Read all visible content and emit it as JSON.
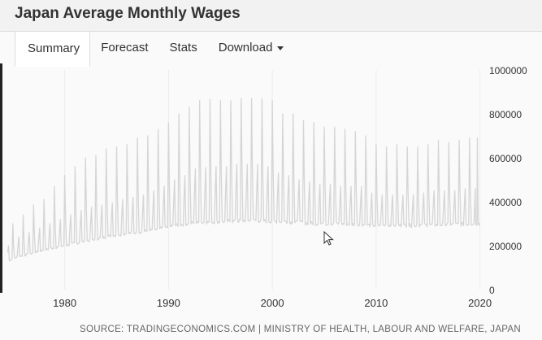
{
  "header": {
    "title": "Japan Average Monthly Wages"
  },
  "tabs": [
    {
      "label": "Summary",
      "active": true
    },
    {
      "label": "Forecast",
      "active": false
    },
    {
      "label": "Stats",
      "active": false
    },
    {
      "label": "Download",
      "active": false,
      "icon": "caret-down-icon"
    }
  ],
  "chart_data": {
    "type": "line",
    "x_label": "",
    "y_label": "",
    "x_range": [
      1974,
      2020.5
    ],
    "y_range": [
      0,
      1000000
    ],
    "x_ticks": [
      "1980",
      "1990",
      "2000",
      "2010",
      "2020"
    ],
    "y_ticks": [
      "0",
      "200000",
      "400000",
      "600000",
      "800000",
      "1000000"
    ],
    "grid": "vertical",
    "line_color": "#d5d5d5",
    "series": [
      {
        "name": "",
        "x": [
          1974.5,
          1975.5,
          1976.5,
          1977.5,
          1978.5,
          1979.5,
          1980.5,
          1981.5,
          1982.5,
          1983.5,
          1984.5,
          1985.5,
          1986.5,
          1987.5,
          1988.5,
          1989.5,
          1990.5,
          1991.5,
          1992.5,
          1993.5,
          1994.5,
          1995.5,
          1996.5,
          1997.5,
          1998.5,
          1999.5,
          2000.5,
          2001.5,
          2002.5,
          2003.5,
          2004.5,
          2005.5,
          2006.5,
          2007.5,
          2008.5,
          2009.5,
          2010.5,
          2011.5,
          2012.5,
          2013.5,
          2014.5,
          2015.5,
          2016.5,
          2017.5,
          2018.5,
          2019.5,
          2020
        ],
        "baseline": [
          130000,
          150000,
          160000,
          175000,
          185000,
          195000,
          205000,
          215000,
          225000,
          235000,
          245000,
          252000,
          258000,
          264000,
          270000,
          280000,
          290000,
          298000,
          304000,
          306000,
          308000,
          310000,
          312000,
          315000,
          314000,
          312000,
          310000,
          308000,
          305000,
          302000,
          300000,
          300000,
          300000,
          298000,
          298000,
          292000,
          292000,
          294000,
          292000,
          292000,
          294000,
          295000,
          295000,
          296000,
          298000,
          300000,
          300000
        ],
        "december_peak": [
          300000,
          340000,
          385000,
          410000,
          470000,
          520000,
          560000,
          600000,
          610000,
          640000,
          650000,
          660000,
          690000,
          700000,
          730000,
          760000,
          800000,
          830000,
          860000,
          865000,
          860000,
          860000,
          870000,
          870000,
          870000,
          860000,
          800000,
          800000,
          770000,
          760000,
          740000,
          740000,
          730000,
          720000,
          700000,
          660000,
          650000,
          660000,
          650000,
          650000,
          660000,
          680000,
          670000,
          680000,
          690000,
          690000,
          690000
        ],
        "summer_bonus": [
          200000,
          240000,
          260000,
          280000,
          300000,
          320000,
          340000,
          360000,
          375000,
          385000,
          395000,
          410000,
          420000,
          430000,
          450000,
          470000,
          500000,
          520000,
          550000,
          555000,
          560000,
          560000,
          570000,
          570000,
          570000,
          560000,
          530000,
          520000,
          500000,
          490000,
          480000,
          480000,
          470000,
          470000,
          470000,
          440000,
          430000,
          430000,
          430000,
          430000,
          440000,
          450000,
          450000,
          450000,
          460000,
          460000,
          460000
        ]
      }
    ]
  },
  "footer": {
    "source": "SOURCE: TRADINGECONOMICS.COM | MINISTRY OF HEALTH, LABOUR AND WELFARE, JAPAN"
  }
}
